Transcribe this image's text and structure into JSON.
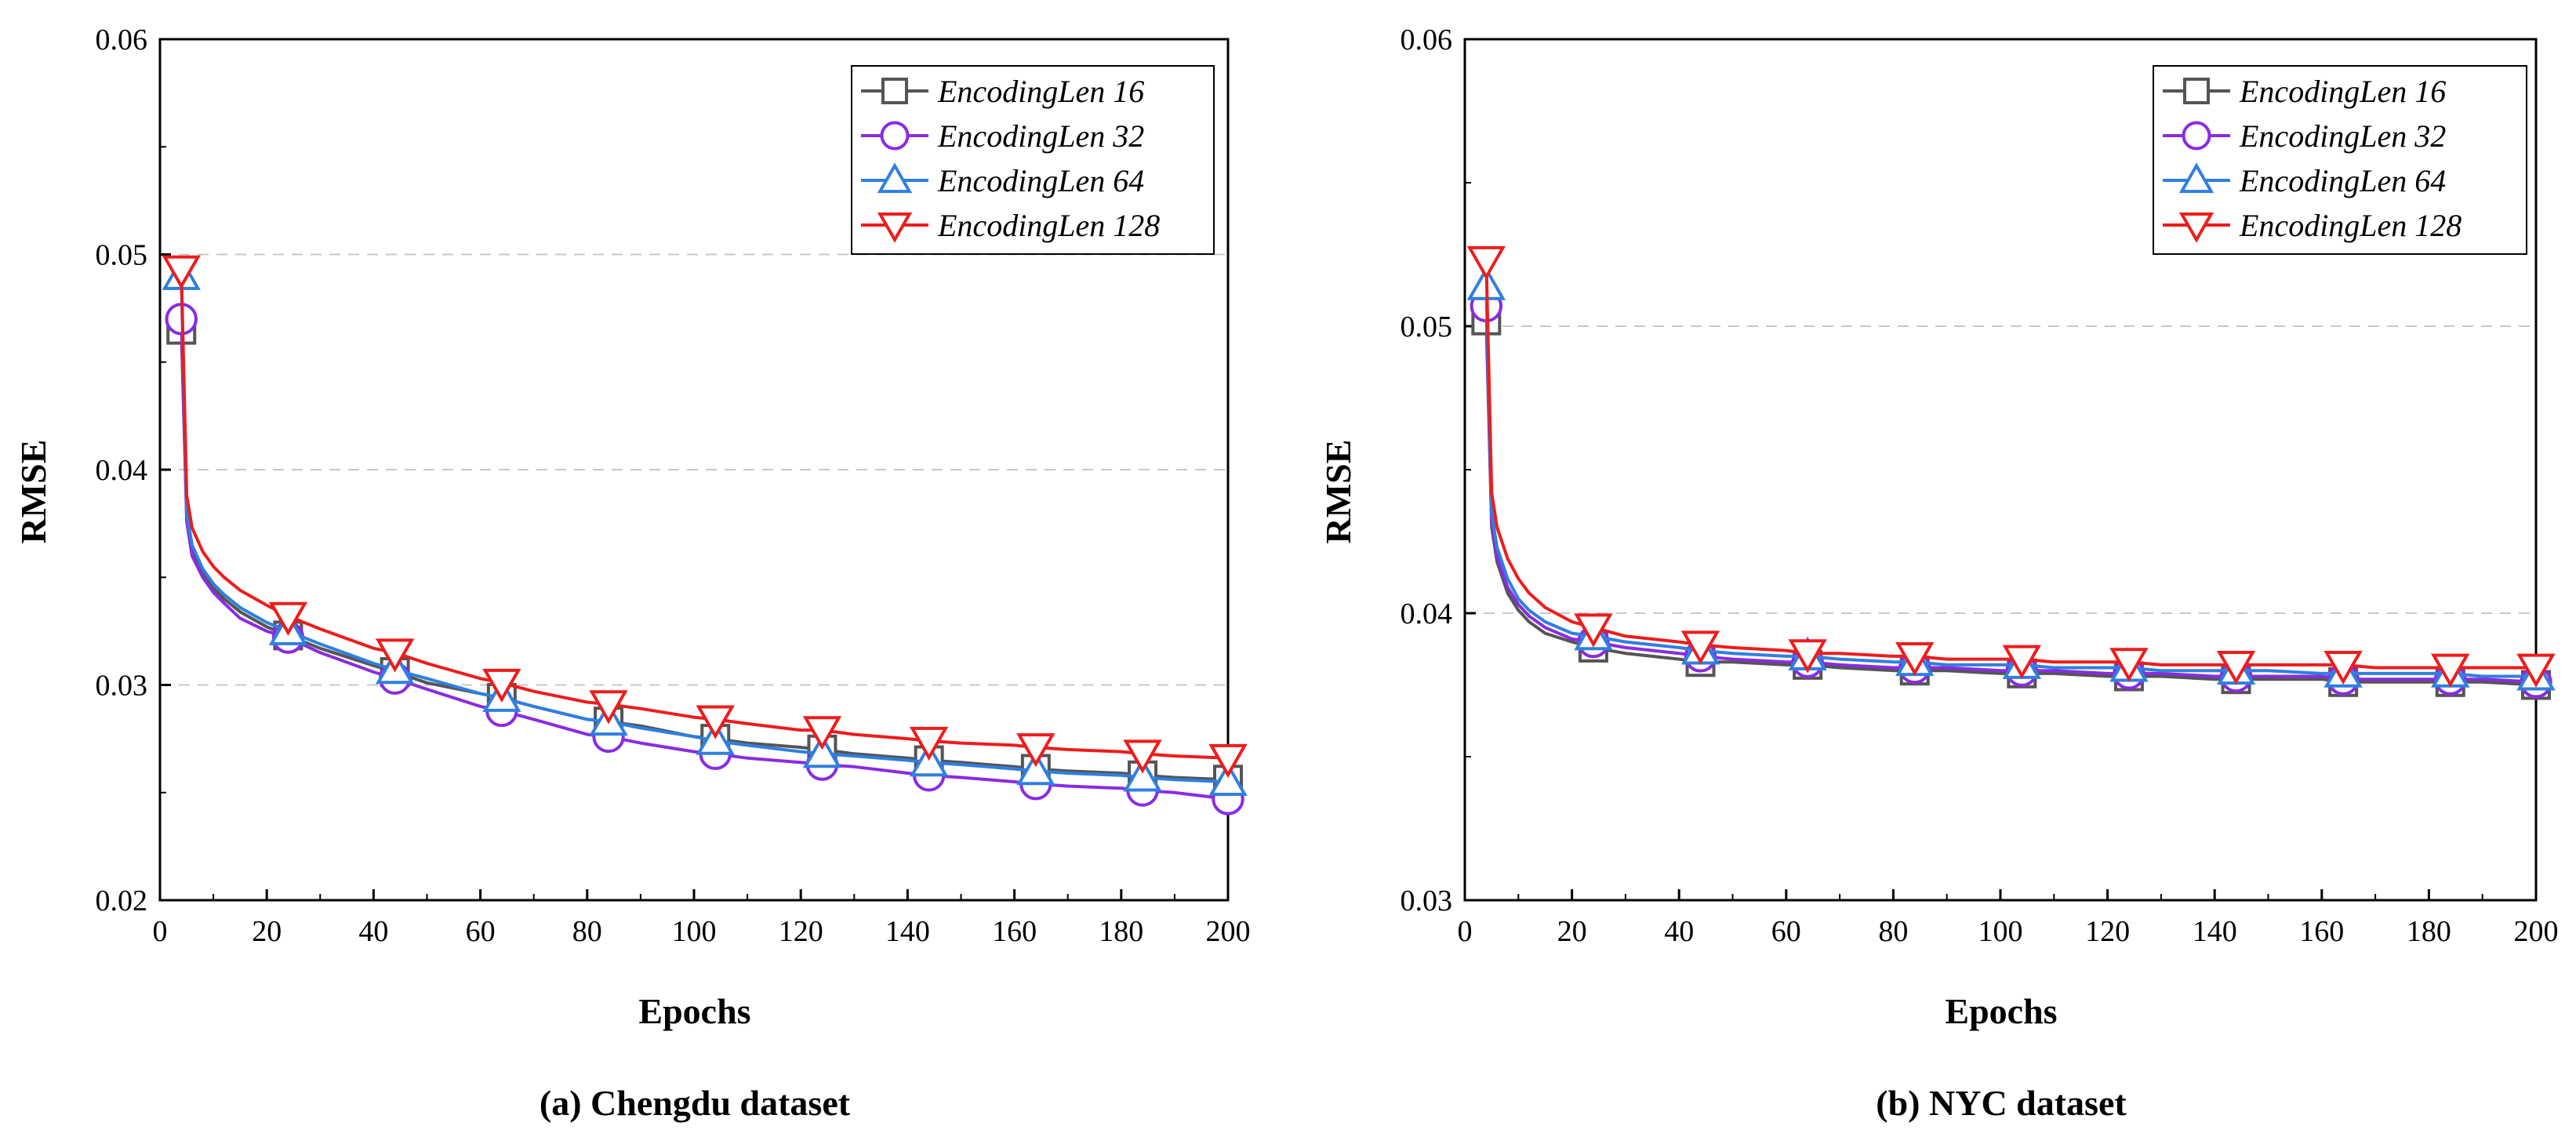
{
  "figure": {
    "series_styles": [
      {
        "name": "EncodingLen 16",
        "color": "#555555",
        "marker": "square"
      },
      {
        "name": "EncodingLen 32",
        "color": "#8a2be2",
        "marker": "circle"
      },
      {
        "name": "EncodingLen 64",
        "color": "#2f7fe0",
        "marker": "triangle-up"
      },
      {
        "name": "EncodingLen 128",
        "color": "#ee1c1c",
        "marker": "triangle-down"
      }
    ]
  },
  "chart_data": [
    {
      "type": "line",
      "caption": "(a) Chengdu dataset",
      "xlabel": "Epochs",
      "ylabel": "RMSE",
      "xlim": [
        0,
        200
      ],
      "ylim": [
        0.02,
        0.06
      ],
      "xticks": [
        0,
        20,
        40,
        60,
        80,
        100,
        120,
        140,
        160,
        180,
        200
      ],
      "xtick_labels": [
        "0",
        "20",
        "40",
        "60",
        "80",
        "100",
        "120",
        "140",
        "160",
        "180",
        "200"
      ],
      "yticks": [
        0.02,
        0.03,
        0.04,
        0.05,
        0.06
      ],
      "ytick_labels": [
        "0.02",
        "0.03",
        "0.04",
        "0.05",
        "0.06"
      ],
      "grid": "horizontal-dashed",
      "legend_position": "top-right",
      "marker_x": [
        4,
        24,
        44,
        64,
        84,
        104,
        124,
        144,
        164,
        184,
        200
      ],
      "x": [
        4,
        5,
        6,
        8,
        10,
        12,
        15,
        20,
        24,
        30,
        40,
        44,
        50,
        60,
        64,
        70,
        80,
        84,
        90,
        100,
        104,
        110,
        120,
        124,
        130,
        140,
        144,
        150,
        160,
        164,
        170,
        180,
        184,
        190,
        200
      ],
      "series": [
        {
          "name": "EncodingLen 16",
          "values": [
            0.0465,
            0.0378,
            0.0362,
            0.0352,
            0.0345,
            0.034,
            0.0334,
            0.0327,
            0.0323,
            0.0317,
            0.0309,
            0.0306,
            0.0301,
            0.0296,
            0.0294,
            0.029,
            0.0284,
            0.0283,
            0.0281,
            0.0276,
            0.0275,
            0.0273,
            0.0271,
            0.027,
            0.0268,
            0.0266,
            0.0265,
            0.0264,
            0.0262,
            0.0261,
            0.026,
            0.0259,
            0.0258,
            0.0257,
            0.0256
          ]
        },
        {
          "name": "EncodingLen 32",
          "values": [
            0.047,
            0.0376,
            0.036,
            0.035,
            0.0343,
            0.0338,
            0.0331,
            0.0325,
            0.0322,
            0.0315,
            0.0306,
            0.0303,
            0.0298,
            0.029,
            0.0288,
            0.0284,
            0.0277,
            0.0276,
            0.0273,
            0.0269,
            0.0268,
            0.0266,
            0.0264,
            0.0263,
            0.0262,
            0.0259,
            0.0258,
            0.0257,
            0.0255,
            0.0254,
            0.0253,
            0.0252,
            0.0251,
            0.025,
            0.0247
          ]
        },
        {
          "name": "EncodingLen 64",
          "values": [
            0.049,
            0.038,
            0.0365,
            0.0354,
            0.0347,
            0.0342,
            0.0336,
            0.0329,
            0.0325,
            0.0319,
            0.031,
            0.0307,
            0.0303,
            0.0296,
            0.0294,
            0.029,
            0.0284,
            0.0283,
            0.028,
            0.0276,
            0.0274,
            0.0272,
            0.0269,
            0.0268,
            0.0267,
            0.0265,
            0.0264,
            0.0263,
            0.0261,
            0.026,
            0.0259,
            0.0258,
            0.0257,
            0.0256,
            0.0255
          ]
        },
        {
          "name": "EncodingLen 128",
          "values": [
            0.0493,
            0.0388,
            0.0373,
            0.0362,
            0.0355,
            0.035,
            0.0344,
            0.0337,
            0.0332,
            0.0326,
            0.0317,
            0.0315,
            0.031,
            0.0303,
            0.0301,
            0.0297,
            0.0292,
            0.0291,
            0.0289,
            0.0285,
            0.0284,
            0.0282,
            0.0279,
            0.0279,
            0.0277,
            0.0275,
            0.0274,
            0.0273,
            0.0272,
            0.0271,
            0.027,
            0.0269,
            0.0268,
            0.0267,
            0.0266
          ]
        }
      ]
    },
    {
      "type": "line",
      "caption": "(b) NYC dataset",
      "xlabel": "Epochs",
      "ylabel": "RMSE",
      "xlim": [
        0,
        200
      ],
      "ylim": [
        0.03,
        0.06
      ],
      "xticks": [
        0,
        20,
        40,
        60,
        80,
        100,
        120,
        140,
        160,
        180,
        200
      ],
      "xtick_labels": [
        "0",
        "20",
        "40",
        "60",
        "80",
        "100",
        "120",
        "140",
        "160",
        "180",
        "200"
      ],
      "yticks": [
        0.03,
        0.04,
        0.05,
        0.06
      ],
      "ytick_labels": [
        "0.03",
        "0.04",
        "0.05",
        "0.06"
      ],
      "grid": "horizontal-dashed",
      "legend_position": "top-right",
      "marker_x": [
        4,
        24,
        44,
        64,
        84,
        104,
        124,
        144,
        164,
        184,
        200
      ],
      "x": [
        4,
        5,
        6,
        8,
        10,
        12,
        15,
        20,
        24,
        30,
        40,
        44,
        50,
        60,
        64,
        70,
        80,
        84,
        90,
        100,
        104,
        110,
        120,
        124,
        130,
        140,
        144,
        150,
        160,
        164,
        170,
        180,
        184,
        190,
        200
      ],
      "series": [
        {
          "name": "EncodingLen 16",
          "values": [
            0.0502,
            0.043,
            0.0418,
            0.0407,
            0.0401,
            0.0397,
            0.0393,
            0.039,
            0.0388,
            0.0386,
            0.0384,
            0.0383,
            0.0383,
            0.0382,
            0.0382,
            0.0381,
            0.038,
            0.038,
            0.038,
            0.0379,
            0.0379,
            0.0379,
            0.0378,
            0.0378,
            0.0378,
            0.0377,
            0.0377,
            0.0377,
            0.0377,
            0.0376,
            0.0376,
            0.0376,
            0.0376,
            0.0376,
            0.0375
          ]
        },
        {
          "name": "EncodingLen 32",
          "values": [
            0.0507,
            0.0432,
            0.042,
            0.0409,
            0.0403,
            0.0399,
            0.0395,
            0.0391,
            0.039,
            0.0388,
            0.0386,
            0.0385,
            0.0384,
            0.0383,
            0.0383,
            0.0382,
            0.0381,
            0.0381,
            0.0381,
            0.038,
            0.038,
            0.038,
            0.0379,
            0.0379,
            0.0379,
            0.0378,
            0.0378,
            0.0378,
            0.0378,
            0.0377,
            0.0377,
            0.0377,
            0.0377,
            0.0377,
            0.0376
          ]
        },
        {
          "name": "EncodingLen 64",
          "values": [
            0.0514,
            0.0435,
            0.0423,
            0.0412,
            0.0405,
            0.0401,
            0.0397,
            0.0393,
            0.0392,
            0.039,
            0.0388,
            0.0387,
            0.0386,
            0.0385,
            0.0385,
            0.0384,
            0.0383,
            0.0383,
            0.0382,
            0.0382,
            0.0382,
            0.0381,
            0.0381,
            0.0381,
            0.038,
            0.038,
            0.038,
            0.038,
            0.0379,
            0.0379,
            0.0379,
            0.0379,
            0.0379,
            0.0378,
            0.0378
          ]
        },
        {
          "name": "EncodingLen 128",
          "values": [
            0.0523,
            0.0442,
            0.043,
            0.0419,
            0.0412,
            0.0407,
            0.0402,
            0.0397,
            0.0395,
            0.0392,
            0.039,
            0.0389,
            0.0388,
            0.0387,
            0.0386,
            0.0386,
            0.0385,
            0.0385,
            0.0384,
            0.0384,
            0.0384,
            0.0383,
            0.0383,
            0.0383,
            0.0382,
            0.0382,
            0.0382,
            0.0382,
            0.0382,
            0.0382,
            0.0381,
            0.0381,
            0.0381,
            0.0381,
            0.0381
          ]
        }
      ]
    }
  ]
}
